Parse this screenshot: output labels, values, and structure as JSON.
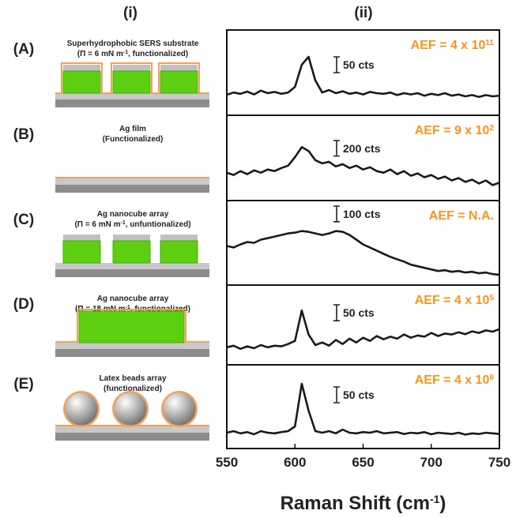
{
  "column_labels": [
    "(i)",
    "(ii)"
  ],
  "panels": [
    {
      "label": "(A)",
      "caption": [
        "Superhydrophobic SERS substrate",
        [
          "(Π = 6 mN m",
          "-1",
          ", functionalized)"
        ]
      ]
    },
    {
      "label": "(B)",
      "caption": [
        "Ag film",
        "(Functionalized)"
      ]
    },
    {
      "label": "(C)",
      "caption": [
        "Ag nanocube array",
        [
          "(Π = 6 mN m",
          "-1",
          ", unfuntionalized)"
        ]
      ]
    },
    {
      "label": "(D)",
      "caption": [
        "Ag nanocube array",
        [
          "(Π = 18 mN m",
          "-1",
          ", functionalized)"
        ]
      ]
    },
    {
      "label": "(E)",
      "caption": [
        "Latex beads array",
        "(functionalized)"
      ]
    }
  ],
  "chart_data": [
    {
      "type": "line",
      "color": "#1a1a1a",
      "x": [
        550,
        555,
        560,
        565,
        570,
        575,
        580,
        585,
        590,
        595,
        600,
        605,
        610,
        615,
        620,
        625,
        630,
        635,
        640,
        645,
        650,
        655,
        660,
        665,
        670,
        675,
        680,
        685,
        690,
        695,
        700,
        705,
        710,
        715,
        720,
        725,
        730,
        735,
        740,
        745,
        750
      ],
      "values": [
        65,
        72,
        68,
        75,
        66,
        78,
        70,
        74,
        68,
        72,
        90,
        160,
        185,
        110,
        72,
        80,
        70,
        76,
        68,
        72,
        66,
        74,
        70,
        68,
        72,
        64,
        70,
        66,
        70,
        62,
        68,
        64,
        70,
        62,
        66,
        60,
        64,
        58,
        64,
        60,
        62
      ],
      "xlim": [
        550,
        750
      ],
      "ylim": [
        0,
        270
      ],
      "annotation": "AEF = 4 x 10",
      "annotation_sup": "11",
      "scale_bar": {
        "value": 50,
        "label": "50 cts"
      }
    },
    {
      "type": "line",
      "color": "#1a1a1a",
      "x": [
        550,
        555,
        560,
        565,
        570,
        575,
        580,
        585,
        590,
        595,
        600,
        605,
        610,
        615,
        620,
        625,
        630,
        635,
        640,
        645,
        650,
        655,
        660,
        665,
        670,
        675,
        680,
        685,
        690,
        695,
        700,
        705,
        710,
        715,
        720,
        725,
        730,
        735,
        740,
        745,
        750
      ],
      "values": [
        360,
        330,
        380,
        340,
        390,
        360,
        400,
        380,
        420,
        450,
        560,
        690,
        640,
        520,
        480,
        500,
        440,
        470,
        420,
        450,
        400,
        430,
        380,
        360,
        400,
        340,
        380,
        320,
        350,
        300,
        330,
        280,
        310,
        260,
        290,
        240,
        270,
        220,
        260,
        200,
        230
      ],
      "xlim": [
        550,
        750
      ],
      "ylim": [
        0,
        1100
      ],
      "annotation": "AEF = 9 x 10",
      "annotation_sup": "2",
      "scale_bar": {
        "value": 200,
        "label": "200 cts"
      }
    },
    {
      "type": "line",
      "color": "#1a1a1a",
      "x": [
        550,
        555,
        560,
        565,
        570,
        575,
        580,
        585,
        590,
        595,
        600,
        605,
        610,
        615,
        620,
        625,
        630,
        635,
        640,
        645,
        650,
        655,
        660,
        665,
        670,
        675,
        680,
        685,
        690,
        695,
        700,
        705,
        710,
        715,
        720,
        725,
        730,
        735,
        740,
        745,
        750
      ],
      "values": [
        250,
        240,
        260,
        275,
        270,
        290,
        300,
        310,
        320,
        330,
        335,
        345,
        340,
        330,
        320,
        330,
        345,
        340,
        320,
        290,
        260,
        240,
        220,
        200,
        180,
        165,
        150,
        130,
        120,
        110,
        100,
        90,
        95,
        85,
        90,
        80,
        85,
        75,
        80,
        70,
        65
      ],
      "xlim": [
        550,
        750
      ],
      "ylim": [
        0,
        540
      ],
      "annotation": "AEF = N.A.",
      "scale_bar": {
        "value": 100,
        "label": "100 cts"
      }
    },
    {
      "type": "line",
      "color": "#1a1a1a",
      "x": [
        550,
        555,
        560,
        565,
        570,
        575,
        580,
        585,
        590,
        595,
        600,
        605,
        610,
        615,
        620,
        625,
        630,
        635,
        640,
        645,
        650,
        655,
        660,
        665,
        670,
        675,
        680,
        685,
        690,
        695,
        700,
        705,
        710,
        715,
        720,
        725,
        730,
        735,
        740,
        745,
        750
      ],
      "values": [
        55,
        60,
        50,
        58,
        52,
        62,
        55,
        60,
        58,
        65,
        75,
        170,
        95,
        62,
        70,
        60,
        78,
        65,
        82,
        70,
        85,
        75,
        90,
        80,
        88,
        82,
        95,
        85,
        92,
        88,
        100,
        90,
        98,
        95,
        102,
        96,
        105,
        100,
        108,
        104,
        112
      ],
      "xlim": [
        550,
        750
      ],
      "ylim": [
        0,
        250
      ],
      "annotation": "AEF = 4 x 10",
      "annotation_sup": "5",
      "scale_bar": {
        "value": 50,
        "label": "50 cts"
      }
    },
    {
      "type": "line",
      "color": "#1a1a1a",
      "x": [
        550,
        555,
        560,
        565,
        570,
        575,
        580,
        585,
        590,
        595,
        600,
        605,
        610,
        615,
        620,
        625,
        630,
        635,
        640,
        645,
        650,
        655,
        660,
        665,
        670,
        675,
        680,
        685,
        690,
        695,
        700,
        705,
        710,
        715,
        720,
        725,
        730,
        735,
        740,
        745,
        750
      ],
      "values": [
        50,
        55,
        48,
        52,
        45,
        55,
        50,
        48,
        52,
        55,
        70,
        205,
        120,
        55,
        50,
        55,
        48,
        60,
        50,
        48,
        52,
        50,
        55,
        48,
        50,
        52,
        46,
        50,
        48,
        52,
        45,
        50,
        48,
        46,
        50,
        44,
        48,
        46,
        50,
        48,
        46
      ],
      "xlim": [
        550,
        750
      ],
      "ylim": [
        0,
        265
      ],
      "annotation": "AEF = 4 x 10",
      "annotation_sup": "6",
      "scale_bar": {
        "value": 50,
        "label": "50 cts"
      },
      "xticks": [
        550,
        600,
        650,
        700,
        750
      ],
      "xlabel": "Raman Shift (cm",
      "xlabel_sup": "-1",
      "xlabel_end": ")"
    }
  ]
}
